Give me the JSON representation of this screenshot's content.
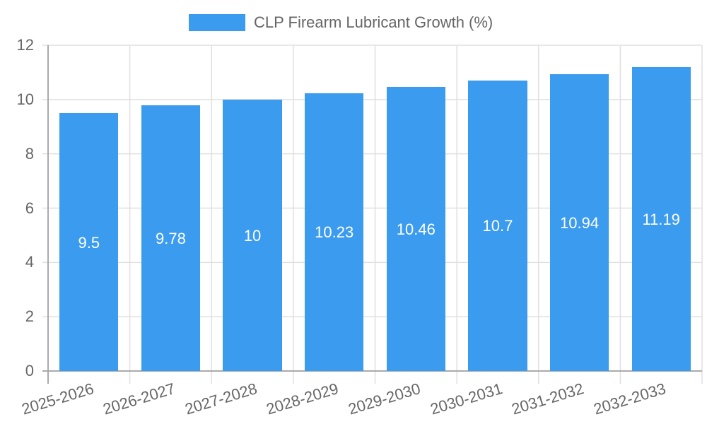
{
  "chart_data": {
    "type": "bar",
    "title": "",
    "legend": [
      {
        "label": "CLP Firearm Lubricant Growth (%)",
        "color": "#3b9bef"
      }
    ],
    "legend_position": "top",
    "categories": [
      "2025-2026",
      "2026-2027",
      "2027-2028",
      "2028-2029",
      "2029-2030",
      "2030-2031",
      "2031-2032",
      "2032-2033"
    ],
    "series": [
      {
        "name": "CLP Firearm Lubricant Growth (%)",
        "values": [
          9.5,
          9.78,
          10,
          10.23,
          10.46,
          10.7,
          10.94,
          11.19
        ],
        "color": "#3b9bef"
      }
    ],
    "data_labels": [
      "9.5",
      "9.78",
      "10",
      "10.23",
      "10.46",
      "10.7",
      "10.94",
      "11.19"
    ],
    "xlabel": "",
    "ylabel": "",
    "ylim": [
      0,
      12
    ],
    "yticks": [
      "0",
      "2",
      "4",
      "6",
      "8",
      "10",
      "12"
    ],
    "grid": true
  }
}
